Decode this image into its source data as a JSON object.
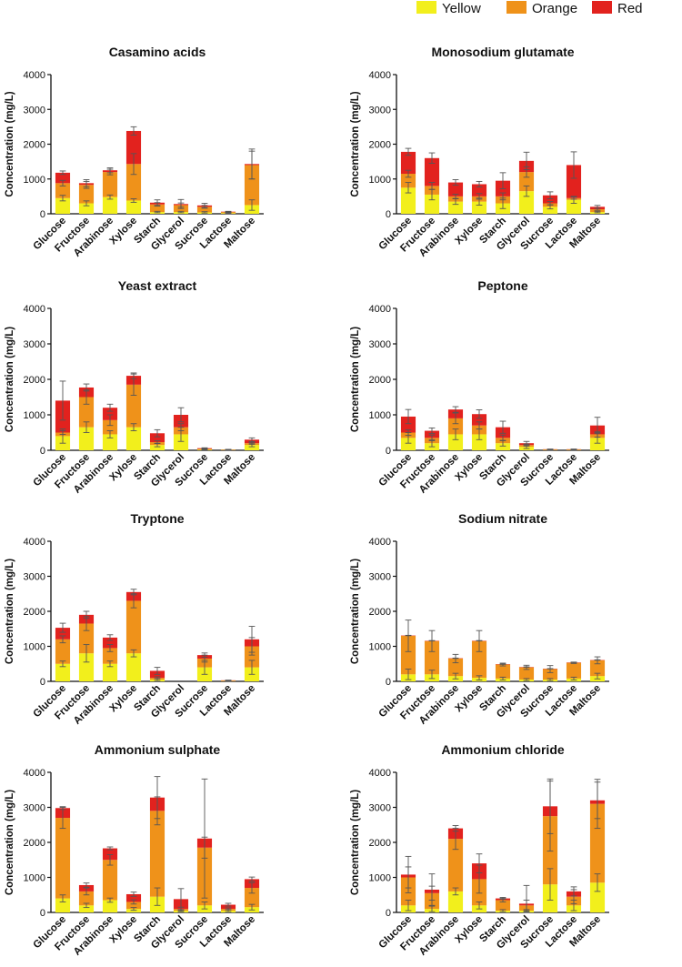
{
  "legend": [
    {
      "label": "Yellow",
      "color": "#f2ef1c"
    },
    {
      "label": "Orange",
      "color": "#ef921a"
    },
    {
      "label": "Red",
      "color": "#e2221e"
    }
  ],
  "chart_data": [
    {
      "type": "bar",
      "stacked": true,
      "title": "Casamino acids",
      "ylabel": "Concentration (mg/L)",
      "ylim": [
        0,
        4000
      ],
      "yticks": [
        0,
        1000,
        2000,
        3000,
        4000
      ],
      "categories": [
        "Glucose",
        "Fructose",
        "Arabinose",
        "Xylose",
        "Starch",
        "Glycerol",
        "Sucrose",
        "Lactose",
        "Maltose"
      ],
      "series": [
        {
          "name": "Yellow",
          "values": [
            450,
            300,
            480,
            380,
            50,
            50,
            40,
            20,
            250
          ],
          "errors": [
            80,
            70,
            60,
            50,
            20,
            20,
            20,
            10,
            150
          ]
        },
        {
          "name": "Orange",
          "values": [
            430,
            530,
            720,
            1050,
            220,
            200,
            160,
            30,
            1150
          ],
          "errors": [
            80,
            100,
            80,
            300,
            50,
            60,
            40,
            10,
            400
          ]
        },
        {
          "name": "Red",
          "values": [
            300,
            50,
            50,
            950,
            50,
            30,
            40,
            10,
            30
          ],
          "errors": [
            50,
            100,
            70,
            120,
            80,
            130,
            60,
            10,
            430
          ]
        }
      ]
    },
    {
      "type": "bar",
      "stacked": true,
      "title": "Monosodium glutamate",
      "ylabel": "Concentration (mg/L)",
      "ylim": [
        0,
        4000
      ],
      "yticks": [
        0,
        1000,
        2000,
        3000,
        4000
      ],
      "categories": [
        "Glucose",
        "Fructose",
        "Arabinose",
        "Xylose",
        "Starch",
        "Glycerol",
        "Sucrose",
        "Lactose",
        "Maltose"
      ],
      "series": [
        {
          "name": "Yellow",
          "values": [
            750,
            550,
            350,
            350,
            300,
            650,
            200,
            400,
            50
          ],
          "errors": [
            150,
            150,
            80,
            100,
            150,
            150,
            60,
            100,
            20
          ]
        },
        {
          "name": "Orange",
          "values": [
            400,
            250,
            150,
            150,
            200,
            550,
            100,
            50,
            80
          ],
          "errors": [
            100,
            100,
            60,
            80,
            100,
            150,
            50,
            30,
            30
          ]
        },
        {
          "name": "Red",
          "values": [
            630,
            800,
            400,
            350,
            450,
            320,
            230,
            950,
            70
          ],
          "errors": [
            100,
            150,
            80,
            80,
            230,
            250,
            100,
            380,
            40
          ]
        }
      ]
    },
    {
      "type": "bar",
      "stacked": true,
      "title": "Yeast extract",
      "ylabel": "Concentration (mg/L)",
      "ylim": [
        0,
        4000
      ],
      "yticks": [
        0,
        1000,
        2000,
        3000,
        4000
      ],
      "categories": [
        "Glucose",
        "Fructose",
        "Arabinose",
        "Xylose",
        "Starch",
        "Glycerol",
        "Sucrose",
        "Lactose",
        "Maltose"
      ],
      "series": [
        {
          "name": "Yellow",
          "values": [
            400,
            650,
            450,
            650,
            150,
            450,
            20,
            10,
            150
          ],
          "errors": [
            200,
            150,
            100,
            100,
            50,
            200,
            10,
            5,
            50
          ]
        },
        {
          "name": "Orange",
          "values": [
            100,
            850,
            400,
            1200,
            80,
            200,
            20,
            5,
            50
          ],
          "errors": [
            50,
            200,
            150,
            300,
            40,
            100,
            10,
            5,
            30
          ]
        },
        {
          "name": "Red",
          "values": [
            900,
            270,
            350,
            250,
            250,
            350,
            20,
            5,
            100
          ],
          "errors": [
            550,
            100,
            100,
            80,
            100,
            200,
            10,
            5,
            50
          ]
        }
      ]
    },
    {
      "type": "bar",
      "stacked": true,
      "title": "Peptone",
      "ylabel": "Concentration (mg/L)",
      "ylim": [
        0,
        4000
      ],
      "yticks": [
        0,
        1000,
        2000,
        3000,
        4000
      ],
      "categories": [
        "Glucose",
        "Fructose",
        "Arabinose",
        "Xylose",
        "Starch",
        "Glycerol",
        "Sucrose",
        "Lactose",
        "Maltose"
      ],
      "series": [
        {
          "name": "Yellow",
          "values": [
            350,
            200,
            450,
            450,
            200,
            100,
            10,
            10,
            350
          ],
          "errors": [
            150,
            100,
            150,
            150,
            80,
            50,
            5,
            5,
            150
          ]
        },
        {
          "name": "Orange",
          "values": [
            150,
            150,
            450,
            250,
            150,
            50,
            10,
            10,
            100
          ],
          "errors": [
            80,
            80,
            150,
            100,
            80,
            30,
            5,
            5,
            80
          ]
        },
        {
          "name": "Red",
          "values": [
            450,
            200,
            250,
            320,
            300,
            50,
            10,
            10,
            250
          ],
          "errors": [
            200,
            80,
            80,
            120,
            170,
            50,
            5,
            5,
            230
          ]
        }
      ]
    },
    {
      "type": "bar",
      "stacked": true,
      "title": "Tryptone",
      "ylabel": "Concentration (mg/L)",
      "ylim": [
        0,
        4000
      ],
      "yticks": [
        0,
        1000,
        2000,
        3000,
        4000
      ],
      "categories": [
        "Glucose",
        "Fructose",
        "Arabinose",
        "Xylose",
        "Starch",
        "Glycerol",
        "Sucrose",
        "Lactose",
        "Maltose"
      ],
      "series": [
        {
          "name": "Yellow",
          "values": [
            500,
            800,
            500,
            800,
            50,
            0,
            400,
            10,
            400
          ],
          "errors": [
            80,
            250,
            80,
            100,
            30,
            0,
            200,
            5,
            200
          ]
        },
        {
          "name": "Orange",
          "values": [
            700,
            850,
            450,
            1500,
            50,
            0,
            250,
            10,
            600
          ],
          "errors": [
            100,
            200,
            100,
            200,
            30,
            0,
            100,
            5,
            250
          ]
        },
        {
          "name": "Red",
          "values": [
            330,
            250,
            300,
            250,
            200,
            0,
            100,
            10,
            200
          ],
          "errors": [
            130,
            100,
            80,
            80,
            100,
            0,
            60,
            5,
            370
          ]
        }
      ]
    },
    {
      "type": "bar",
      "stacked": true,
      "title": "Sodium nitrate",
      "ylabel": "Concentration (mg/L)",
      "ylim": [
        0,
        4000
      ],
      "yticks": [
        0,
        1000,
        2000,
        3000,
        4000
      ],
      "categories": [
        "Glucose",
        "Fructose",
        "Arabinose",
        "Xylose",
        "Starch",
        "Glycerol",
        "Sucrose",
        "Lactose",
        "Maltose"
      ],
      "series": [
        {
          "name": "Yellow",
          "values": [
            200,
            200,
            150,
            100,
            80,
            50,
            50,
            80,
            150
          ],
          "errors": [
            150,
            120,
            80,
            60,
            40,
            30,
            30,
            40,
            80
          ]
        },
        {
          "name": "Orange",
          "values": [
            1100,
            950,
            500,
            1050,
            400,
            350,
            300,
            450,
            450
          ],
          "errors": [
            450,
            300,
            120,
            300,
            40,
            60,
            100,
            20,
            100
          ]
        },
        {
          "name": "Red",
          "values": [
            10,
            10,
            10,
            10,
            10,
            10,
            10,
            10,
            10
          ],
          "errors": [
            5,
            5,
            5,
            5,
            5,
            5,
            5,
            5,
            5
          ]
        }
      ]
    },
    {
      "type": "bar",
      "stacked": true,
      "title": "Ammonium sulphate",
      "ylabel": "Concentration (mg/L)",
      "ylim": [
        0,
        4000
      ],
      "yticks": [
        0,
        1000,
        2000,
        3000,
        4000
      ],
      "categories": [
        "Glucose",
        "Fructose",
        "Arabinose",
        "Xylose",
        "Starch",
        "Glycerol",
        "Sucrose",
        "Lactose",
        "Maltose"
      ],
      "series": [
        {
          "name": "Yellow",
          "values": [
            400,
            200,
            350,
            100,
            450,
            50,
            200,
            50,
            150
          ],
          "errors": [
            100,
            60,
            60,
            40,
            250,
            30,
            100,
            30,
            80
          ]
        },
        {
          "name": "Orange",
          "values": [
            2300,
            400,
            1150,
            200,
            2450,
            50,
            1650,
            50,
            550
          ],
          "errors": [
            300,
            100,
            150,
            60,
            400,
            50,
            300,
            30,
            150
          ]
        },
        {
          "name": "Red",
          "values": [
            280,
            180,
            330,
            220,
            380,
            280,
            260,
            120,
            250
          ],
          "errors": [
            40,
            60,
            40,
            60,
            600,
            300,
            1700,
            40,
            60
          ]
        }
      ]
    },
    {
      "type": "bar",
      "stacked": true,
      "title": "Ammonium chloride",
      "ylabel": "Concentration (mg/L)",
      "ylim": [
        0,
        4000
      ],
      "yticks": [
        0,
        1000,
        2000,
        3000,
        4000
      ],
      "categories": [
        "Glucose",
        "Fructose",
        "Arabinose",
        "Xylose",
        "Starch",
        "Glycerol",
        "Sucrose",
        "Lactose",
        "Maltose"
      ],
      "series": [
        {
          "name": "Yellow",
          "values": [
            200,
            100,
            600,
            200,
            50,
            50,
            800,
            200,
            850
          ],
          "errors": [
            150,
            80,
            100,
            100,
            30,
            30,
            450,
            150,
            250
          ]
        },
        {
          "name": "Orange",
          "values": [
            800,
            450,
            1500,
            750,
            300,
            150,
            1950,
            250,
            2250
          ],
          "errors": [
            300,
            200,
            300,
            400,
            50,
            150,
            1000,
            200,
            700
          ]
        },
        {
          "name": "Red",
          "values": [
            80,
            100,
            300,
            450,
            50,
            50,
            280,
            150,
            100
          ],
          "errors": [
            520,
            450,
            80,
            270,
            30,
            520,
            780,
            130,
            520
          ]
        }
      ]
    }
  ]
}
